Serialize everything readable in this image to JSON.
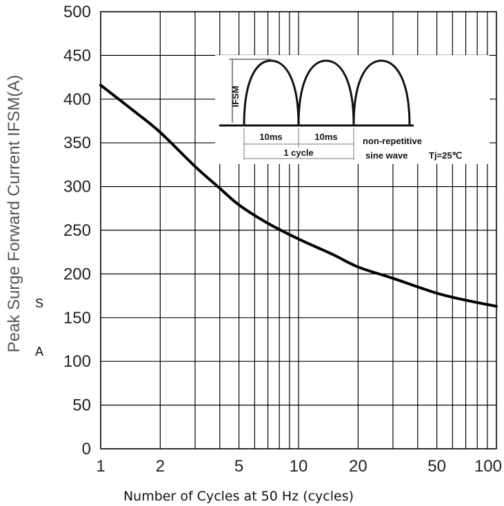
{
  "chart_data": {
    "type": "line",
    "xlabel": "Number of Cycles at 50 Hz (cycles)",
    "ylabel": "Peak Surge Forward Current IFSM(A)",
    "xscale": "log",
    "xlim": [
      1,
      100
    ],
    "ylim": [
      0,
      500
    ],
    "xticks": [
      1,
      2,
      5,
      10,
      20,
      50,
      100
    ],
    "yticks": [
      0,
      50,
      100,
      150,
      200,
      250,
      300,
      350,
      400,
      450,
      500
    ],
    "grid": true,
    "series": [
      {
        "x": [
          1,
          1.5,
          2,
          3,
          4,
          5,
          7,
          10,
          15,
          20,
          30,
          50,
          70,
          100
        ],
        "y": [
          416,
          385,
          362,
          323,
          298,
          279,
          258,
          240,
          222,
          208,
          195,
          178,
          170,
          163
        ]
      }
    ],
    "stray_labels": [
      "S",
      "A"
    ],
    "inset": {
      "ifsm_label": "IFSM",
      "half_cycle_1": "10ms",
      "half_cycle_2": "10ms",
      "cycle_label": "1 cycle",
      "note_line1": "non-repetitive",
      "note_line2": "sine wave",
      "condition": "Tj=25℃"
    },
    "colors": {
      "curve": "#000000",
      "grid": "#000000",
      "axis_title": "#555555"
    }
  }
}
